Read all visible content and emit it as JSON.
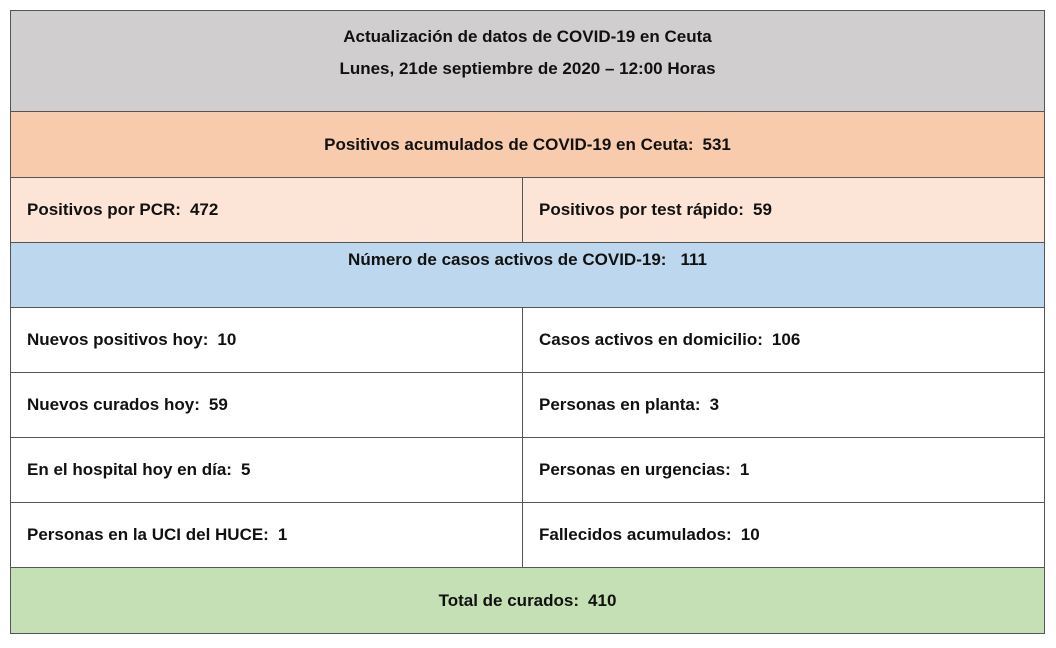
{
  "header": {
    "title": "Actualización de datos de COVID-19 en Ceuta",
    "subtitle": "Lunes, 21de septiembre de 2020 – 12:00 Horas"
  },
  "total_positives": {
    "label": "Positivos acumulados de COVID-19 en Ceuta:",
    "value": 531
  },
  "positives_breakdown": [
    {
      "label": "Positivos por PCR:",
      "value": 472
    },
    {
      "label": "Positivos por test rápido:",
      "value": 59
    }
  ],
  "active_cases": {
    "label": "Número de casos activos de COVID-19:",
    "value": 111
  },
  "table": {
    "rows": [
      [
        {
          "label": "Nuevos positivos hoy:",
          "value": 10
        },
        {
          "label": "Casos activos en domicilio:",
          "value": 106
        }
      ],
      [
        {
          "label": "Nuevos curados hoy:",
          "value": 59
        },
        {
          "label": "Personas en planta:",
          "value": 3
        }
      ],
      [
        {
          "label": "En el hospital hoy en día:",
          "value": 5
        },
        {
          "label": "Personas en urgencias:",
          "value": 1
        }
      ],
      [
        {
          "label": "Personas en la UCI del HUCE:",
          "value": 1
        },
        {
          "label": "Fallecidos acumulados:",
          "value": 10
        }
      ]
    ]
  },
  "total_recovered": {
    "label": "Total de curados:",
    "value": 410
  }
}
